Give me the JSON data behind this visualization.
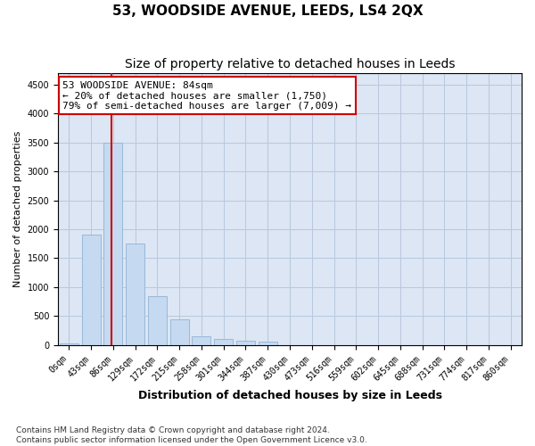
{
  "title": "53, WOODSIDE AVENUE, LEEDS, LS4 2QX",
  "subtitle": "Size of property relative to detached houses in Leeds",
  "xlabel": "Distribution of detached houses by size in Leeds",
  "ylabel": "Number of detached properties",
  "categories": [
    "0sqm",
    "43sqm",
    "86sqm",
    "129sqm",
    "172sqm",
    "215sqm",
    "258sqm",
    "301sqm",
    "344sqm",
    "387sqm",
    "430sqm",
    "473sqm",
    "516sqm",
    "559sqm",
    "602sqm",
    "645sqm",
    "688sqm",
    "731sqm",
    "774sqm",
    "817sqm",
    "860sqm"
  ],
  "values": [
    30,
    1900,
    3500,
    1750,
    850,
    450,
    160,
    100,
    75,
    60,
    0,
    0,
    0,
    0,
    0,
    0,
    0,
    0,
    0,
    0,
    0
  ],
  "bar_color": "#c5d9f0",
  "bar_edge_color": "#9ab8d8",
  "vline_x": 1.93,
  "vline_color": "#cc0000",
  "ylim": [
    0,
    4700
  ],
  "yticks": [
    0,
    500,
    1000,
    1500,
    2000,
    2500,
    3000,
    3500,
    4000,
    4500
  ],
  "annotation_line1": "53 WOODSIDE AVENUE: 84sqm",
  "annotation_line2": "← 20% of detached houses are smaller (1,750)",
  "annotation_line3": "79% of semi-detached houses are larger (7,009) →",
  "annotation_box_color": "#ffffff",
  "annotation_box_edge_color": "#cc0000",
  "footer_line1": "Contains HM Land Registry data © Crown copyright and database right 2024.",
  "footer_line2": "Contains public sector information licensed under the Open Government Licence v3.0.",
  "background_color": "#ffffff",
  "axes_bg_color": "#dce6f4",
  "grid_color": "#b8c8de",
  "title_fontsize": 11,
  "subtitle_fontsize": 10,
  "ylabel_fontsize": 8,
  "xlabel_fontsize": 9,
  "tick_fontsize": 7,
  "annotation_fontsize": 8,
  "footer_fontsize": 6.5
}
